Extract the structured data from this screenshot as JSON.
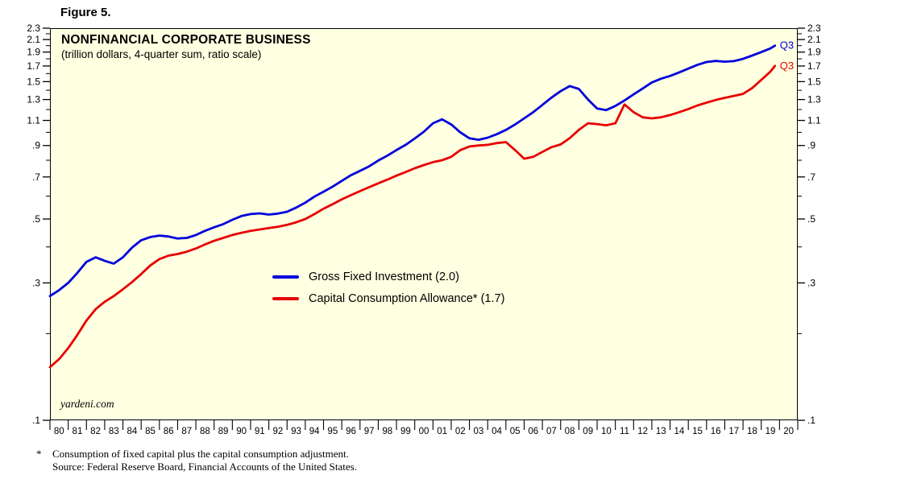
{
  "figure_label": "Figure 5.",
  "chart": {
    "plot_background": "#FFFFE1",
    "border_color": "#000000",
    "watermark": "yardeni.com"
  },
  "footnote": {
    "marker": "*",
    "line1": "Consumption of fixed capital plus the capital consumption adjustment.",
    "line2": "Source: Federal Reserve Board, Financial Accounts of the United States."
  },
  "chart_data": {
    "type": "line",
    "title": "NONFINANCIAL CORPORATE BUSINESS",
    "subtitle": "(trillion dollars, 4-quarter sum, ratio scale)",
    "y_scale": "log",
    "ylim": [
      0.1,
      2.3
    ],
    "yticks": [
      0.1,
      0.3,
      0.5,
      0.7,
      0.9,
      1.1,
      1.3,
      1.5,
      1.7,
      1.9,
      2.1,
      2.3
    ],
    "ytick_labels": [
      ".1",
      ".3",
      ".5",
      ".7",
      ".9",
      "1.1",
      "1.3",
      "1.5",
      "1.7",
      "1.9",
      "2.1",
      "2.3"
    ],
    "yticks_minor": [
      0.2,
      0.4,
      0.6,
      0.8,
      1.0,
      1.2,
      1.4,
      1.6,
      1.8,
      2.0,
      2.2
    ],
    "x_range": [
      1980,
      2021
    ],
    "xtick_labels": [
      "80",
      "81",
      "82",
      "83",
      "84",
      "85",
      "86",
      "87",
      "88",
      "89",
      "90",
      "91",
      "92",
      "93",
      "94",
      "95",
      "96",
      "97",
      "98",
      "99",
      "00",
      "01",
      "02",
      "03",
      "04",
      "05",
      "06",
      "07",
      "08",
      "09",
      "10",
      "11",
      "12",
      "13",
      "14",
      "15",
      "16",
      "17",
      "18",
      "19",
      "20"
    ],
    "legend": [
      {
        "name": "Gross Fixed Investment (2.0)",
        "color": "#0000DC"
      },
      {
        "name": "Capital Consumption Allowance* (1.7)",
        "color": "#E60000"
      }
    ],
    "x": [
      1980,
      1980.5,
      1981,
      1981.5,
      1982,
      1982.5,
      1983,
      1983.5,
      1984,
      1984.5,
      1985,
      1985.5,
      1986,
      1986.5,
      1987,
      1987.5,
      1988,
      1988.5,
      1989,
      1989.5,
      1990,
      1990.5,
      1991,
      1991.5,
      1992,
      1992.5,
      1993,
      1993.5,
      1994,
      1994.5,
      1995,
      1995.5,
      1996,
      1996.5,
      1997,
      1997.5,
      1998,
      1998.5,
      1999,
      1999.5,
      2000,
      2000.5,
      2001,
      2001.5,
      2002,
      2002.5,
      2003,
      2003.5,
      2004,
      2004.5,
      2005,
      2005.5,
      2006,
      2006.5,
      2007,
      2007.5,
      2008,
      2008.5,
      2009,
      2009.5,
      2010,
      2010.5,
      2011,
      2011.5,
      2012,
      2012.5,
      2013,
      2013.5,
      2014,
      2014.5,
      2015,
      2015.5,
      2016,
      2016.5,
      2017,
      2017.5,
      2018,
      2018.5,
      2019,
      2019.5,
      2019.75
    ],
    "series": [
      {
        "name": "Gross Fixed Investment",
        "color": "#0000DC",
        "end_label": "Q3",
        "latest_value": 2.0,
        "values": [
          0.27,
          0.283,
          0.3,
          0.325,
          0.355,
          0.368,
          0.358,
          0.35,
          0.368,
          0.398,
          0.422,
          0.433,
          0.438,
          0.435,
          0.428,
          0.43,
          0.44,
          0.455,
          0.468,
          0.48,
          0.497,
          0.512,
          0.52,
          0.523,
          0.518,
          0.522,
          0.53,
          0.548,
          0.57,
          0.598,
          0.622,
          0.648,
          0.678,
          0.71,
          0.735,
          0.762,
          0.798,
          0.83,
          0.868,
          0.905,
          0.952,
          1.005,
          1.075,
          1.11,
          1.065,
          1.0,
          0.953,
          0.942,
          0.958,
          0.985,
          1.02,
          1.065,
          1.118,
          1.175,
          1.245,
          1.32,
          1.39,
          1.448,
          1.415,
          1.3,
          1.21,
          1.195,
          1.235,
          1.29,
          1.355,
          1.42,
          1.49,
          1.535,
          1.57,
          1.615,
          1.665,
          1.715,
          1.755,
          1.77,
          1.76,
          1.768,
          1.8,
          1.848,
          1.9,
          1.955,
          2.0
        ]
      },
      {
        "name": "Capital Consumption Allowance",
        "color": "#E60000",
        "end_label": "Q3",
        "latest_value": 1.7,
        "values": [
          0.153,
          0.163,
          0.178,
          0.198,
          0.222,
          0.243,
          0.258,
          0.27,
          0.285,
          0.302,
          0.322,
          0.345,
          0.363,
          0.373,
          0.378,
          0.385,
          0.395,
          0.408,
          0.42,
          0.43,
          0.44,
          0.448,
          0.455,
          0.46,
          0.465,
          0.47,
          0.477,
          0.487,
          0.5,
          0.52,
          0.543,
          0.563,
          0.585,
          0.605,
          0.625,
          0.645,
          0.665,
          0.685,
          0.707,
          0.728,
          0.75,
          0.77,
          0.788,
          0.8,
          0.822,
          0.868,
          0.893,
          0.9,
          0.905,
          0.918,
          0.925,
          0.868,
          0.81,
          0.822,
          0.855,
          0.888,
          0.908,
          0.955,
          1.02,
          1.075,
          1.068,
          1.058,
          1.075,
          1.25,
          1.175,
          1.128,
          1.118,
          1.128,
          1.148,
          1.175,
          1.205,
          1.24,
          1.268,
          1.295,
          1.318,
          1.338,
          1.36,
          1.425,
          1.52,
          1.625,
          1.7
        ]
      }
    ]
  }
}
